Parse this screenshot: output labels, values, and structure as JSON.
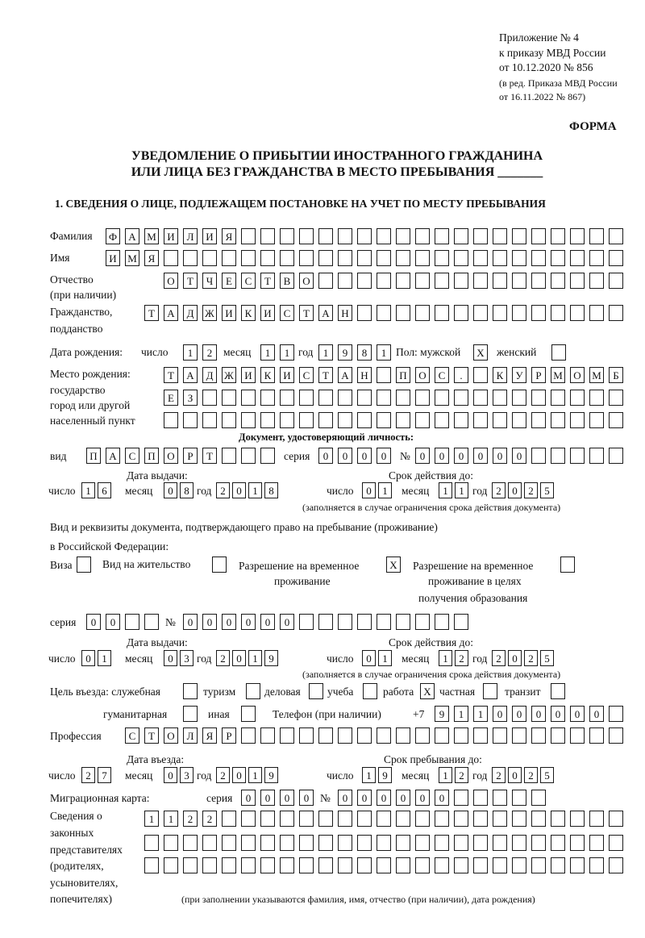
{
  "header": {
    "line1": "Приложение № 4",
    "line2": "к приказу МВД России",
    "line3": "от 10.12.2020 № 856",
    "line4": "(в ред. Приказа МВД России",
    "line5": "от 16.11.2022 № 867)",
    "form_label": "ФОРМА"
  },
  "title": {
    "line1": "УВЕДОМЛЕНИЕ О ПРИБЫТИИ ИНОСТРАННОГО ГРАЖДАНИНА",
    "line2": "ИЛИ ЛИЦА БЕЗ ГРАЖДАНСТВА В МЕСТО ПРЕБЫВАНИЯ _______"
  },
  "section1": {
    "heading": "1. СВЕДЕНИЯ О ЛИЦЕ, ПОДЛЕЖАЩЕМ ПОСТАНОВКЕ НА УЧЕТ ПО МЕСТУ ПРЕБЫВАНИЯ"
  },
  "labels": {
    "surname": "Фамилия",
    "name": "Имя",
    "patronymic": "Отчество",
    "patronymic_note": "(при наличии)",
    "citizenship1": "Гражданство,",
    "citizenship2": "подданство",
    "birth_date": "Дата рождения:",
    "day": "число",
    "month": "месяц",
    "year": "год",
    "sex_male": "Пол: мужской",
    "sex_female": "женский",
    "birthplace1": "Место рождения:",
    "birthplace2": "государство",
    "birthplace3": "город или другой",
    "birthplace4": "населенный пункт",
    "id_doc": "Документ, удостоверяющий личность:",
    "kind": "вид",
    "series": "серия",
    "number": "№",
    "issue_date": "Дата выдачи:",
    "valid_until": "Срок действия до:",
    "validity_note": "(заполняется в случае ограничения срока действия документа)",
    "stay_doc1": "Вид и реквизиты документа, подтверждающего право на пребывание (проживание)",
    "stay_doc2": "в Российской Федерации:",
    "visa": "Виза",
    "residence": "Вид на жительство",
    "trp1": "Разрешение на временное",
    "trp2": "проживание",
    "trp_edu1": "Разрешение на временное",
    "trp_edu2": "проживание в целях",
    "trp_edu3": "получения образования",
    "purpose": "Цель въезда: служебная",
    "tourism": "туризм",
    "business": "деловая",
    "study": "учеба",
    "work": "работа",
    "private": "частная",
    "transit": "транзит",
    "humanitarian": "гуманитарная",
    "other": "иная",
    "phone": "Телефон (при наличии)",
    "phone_prefix": "+7",
    "profession": "Профессия",
    "entry_date": "Дата въезда:",
    "stay_until": "Срок пребывания до:",
    "migration_card": "Миграционная карта:",
    "reps1": "Сведения о",
    "reps2": "законных",
    "reps3": "представителях",
    "reps4": "(родителях,",
    "reps5": "усыновителях,",
    "reps6": "попечителях)",
    "reps_note": "(при заполнении указываются фамилия, имя, отчество (при наличии), дата рождения)"
  },
  "person": {
    "surname": "ФАМИЛИЯ",
    "name": "ИМЯ",
    "patronymic": "ОТЧЕСТВО",
    "citizenship": "ТАДЖИКИСТАН",
    "birth_day": "12",
    "birth_month": "11",
    "birth_year": "1981",
    "sex_male": "X",
    "sex_female": "",
    "birthplace_line1": "ТАДЖИКИСТАН ПОС. КУРМОМБ",
    "birthplace_line2": "ЕЗ",
    "birthplace_line3": ""
  },
  "id_doc": {
    "kind": "ПАСПОРТ",
    "series": "0000",
    "number": "000000",
    "issue_day": "16",
    "issue_month": "08",
    "issue_year": "2018",
    "valid_day": "01",
    "valid_month": "11",
    "valid_year": "2025"
  },
  "stay_doc": {
    "visa": "",
    "residence": "",
    "trp": "X",
    "trp_edu": "",
    "series": "00",
    "number": "000000",
    "issue_day": "01",
    "issue_month": "03",
    "issue_year": "2019",
    "valid_day": "01",
    "valid_month": "12",
    "valid_year": "2025"
  },
  "purpose": {
    "service": "",
    "tourism": "",
    "business": "",
    "study": "",
    "work": "X",
    "private": "",
    "transit": "",
    "humanitarian": "",
    "other": ""
  },
  "phone": "911000000",
  "profession": "СТОЛЯР",
  "entry": {
    "day": "27",
    "month": "03",
    "year": "2019"
  },
  "stay_until": {
    "day": "19",
    "month": "12",
    "year": "2025"
  },
  "migration_card": {
    "series": "0000",
    "number": "000000"
  },
  "representatives": {
    "line1": "1122",
    "line2": "",
    "line3": ""
  }
}
